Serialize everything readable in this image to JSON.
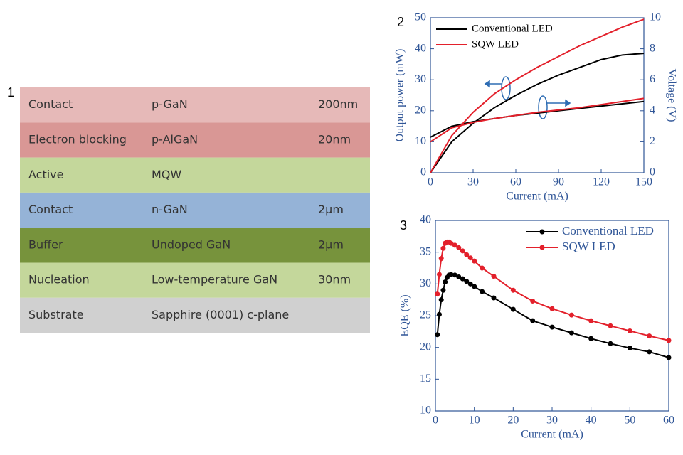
{
  "table": {
    "label": "1",
    "rows": [
      {
        "cells": [
          "Contact",
          "p-GaN",
          "200nm"
        ],
        "color": "#e6b9b8"
      },
      {
        "cells": [
          "Electron blocking",
          "p-AlGaN",
          "20nm"
        ],
        "color": "#d99795"
      },
      {
        "cells": [
          "Active",
          "MQW"
        ],
        "color": "#c4d79b"
      },
      {
        "cells": [
          "Contact",
          "n-GaN",
          "2µm"
        ],
        "color": "#95b3d7"
      },
      {
        "cells": [
          "Buffer",
          "Undoped GaN",
          "2µm"
        ],
        "color": "#77933c"
      },
      {
        "cells": [
          "Nucleation",
          "Low-temperature GaN",
          "30nm"
        ],
        "color": "#c4d79b"
      },
      {
        "cells": [
          "Substrate",
          "Sapphire (0001) c-plane"
        ],
        "color": "#d0d0d0"
      }
    ]
  },
  "chart_data": [
    {
      "type": "line",
      "label": "2",
      "x_label": "Current (mA)",
      "y_label": "Output power (mW)",
      "y2_label": "Voltage (V)",
      "x": [
        0,
        15,
        30,
        45,
        60,
        75,
        90,
        105,
        120,
        135,
        150
      ],
      "xlim": [
        0,
        150
      ],
      "xticks": [
        0,
        30,
        60,
        90,
        120,
        150
      ],
      "ylim": [
        0,
        50
      ],
      "yticks": [
        0,
        10,
        20,
        30,
        40,
        50
      ],
      "y2lim": [
        0,
        10
      ],
      "y2ticks": [
        0,
        2,
        4,
        6,
        8,
        10
      ],
      "legend": "upper left",
      "markers": false,
      "series": [
        {
          "name": "Conventional LED",
          "color": "#000000",
          "values": [
            0,
            10,
            16,
            21,
            25,
            28.5,
            31.5,
            34,
            36.5,
            38,
            38.5
          ],
          "y2_values": [
            2.3,
            3.0,
            3.3,
            3.5,
            3.7,
            3.85,
            4.0,
            4.15,
            4.3,
            4.45,
            4.6
          ]
        },
        {
          "name": "SQW LED",
          "color": "#e3202b",
          "values": [
            0,
            12,
            19.5,
            25.5,
            30,
            34,
            37.5,
            41,
            44,
            47,
            49.5
          ],
          "y2_values": [
            2.0,
            2.9,
            3.25,
            3.5,
            3.7,
            3.9,
            4.05,
            4.2,
            4.4,
            4.6,
            4.8
          ]
        }
      ]
    },
    {
      "type": "line",
      "label": "3",
      "x_label": "Current (mA)",
      "y_label": "EQE (%)",
      "x": [
        0.5,
        1,
        1.5,
        2,
        2.5,
        3,
        3.5,
        4,
        5,
        6,
        7,
        8,
        9,
        10,
        12,
        15,
        20,
        25,
        30,
        35,
        40,
        45,
        50,
        55,
        60
      ],
      "xlim": [
        0,
        60
      ],
      "xticks": [
        0,
        10,
        20,
        30,
        40,
        50,
        60
      ],
      "ylim": [
        10,
        40
      ],
      "yticks": [
        10,
        15,
        20,
        25,
        30,
        35,
        40
      ],
      "legend": "upper right",
      "markers": true,
      "series": [
        {
          "name": "Conventional LED",
          "color": "#000000",
          "values": [
            22,
            25.2,
            27.5,
            29,
            30.3,
            31,
            31.4,
            31.5,
            31.4,
            31.1,
            30.8,
            30.4,
            30,
            29.6,
            28.8,
            27.8,
            26,
            24.2,
            23.2,
            22.3,
            21.4,
            20.6,
            19.9,
            19.3,
            18.4
          ]
        },
        {
          "name": "SQW LED",
          "color": "#e3202b",
          "values": [
            28.4,
            31.5,
            34,
            35.6,
            36.4,
            36.6,
            36.6,
            36.4,
            36.1,
            35.7,
            35.2,
            34.6,
            34.1,
            33.6,
            32.5,
            31.2,
            29,
            27.3,
            26.1,
            25.1,
            24.2,
            23.4,
            22.6,
            21.8,
            21.1
          ]
        }
      ]
    }
  ]
}
